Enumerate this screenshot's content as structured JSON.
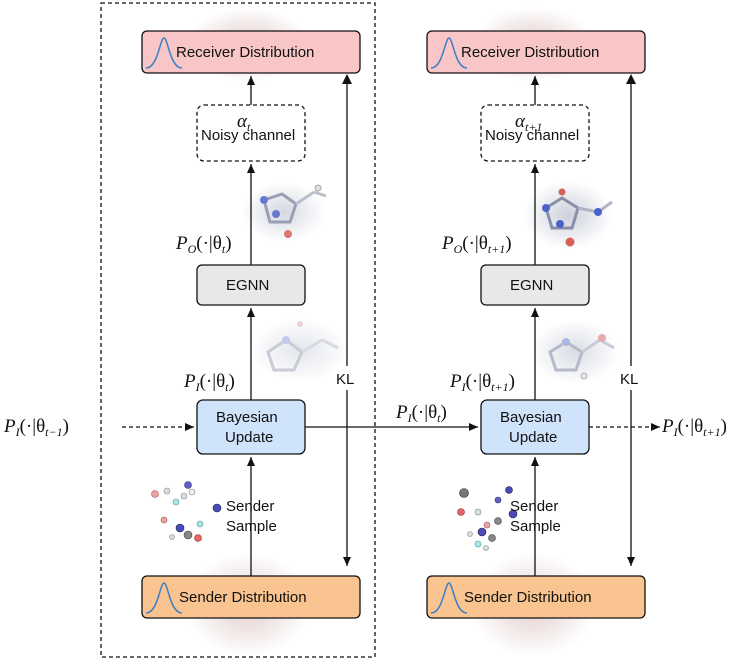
{
  "panels": [
    {
      "receiver_label": "Receiver Distribution",
      "alpha_symbol": "α",
      "alpha_sub": "t",
      "channel_label": "Noisy channel",
      "po_prefix": "P",
      "po_sub": "O",
      "po_arg": "(·|θ",
      "po_arg_sub": "t",
      "egnn_label": "EGNN",
      "pi_prefix": "P",
      "pi_sub": "I",
      "pi_arg": "(·|θ",
      "pi_arg_sub": "t",
      "bayes_line1": "Bayesian",
      "bayes_line2": "Update",
      "kl_label": "KL",
      "sender_sample_line1": "Sender",
      "sender_sample_line2": "Sample",
      "sender_label": "Sender Distribution"
    },
    {
      "receiver_label": "Receiver Distribution",
      "alpha_symbol": "α",
      "alpha_sub": "t+1",
      "channel_label": "Noisy channel",
      "po_prefix": "P",
      "po_sub": "O",
      "po_arg": "(·|θ",
      "po_arg_sub": "t+1",
      "egnn_label": "EGNN",
      "pi_prefix": "P",
      "pi_sub": "I",
      "pi_arg": "(·|θ",
      "pi_arg_sub": "t+1",
      "bayes_line1": "Bayesian",
      "bayes_line2": "Update",
      "kl_label": "KL",
      "sender_sample_line1": "Sender",
      "sender_sample_line2": "Sample",
      "sender_label": "Sender Distribution"
    }
  ],
  "flow": {
    "input_prefix": "P",
    "input_sub": "I",
    "input_arg": "(·|θ",
    "input_arg_sub": "t−1",
    "input_close": ")",
    "middle_prefix": "P",
    "middle_sub": "I",
    "middle_arg": "(·|θ",
    "middle_arg_sub": "t",
    "middle_close": ")",
    "output_prefix": "P",
    "output_sub": "I",
    "output_arg": "(·|θ",
    "output_arg_sub": "t+1",
    "output_close": ")"
  },
  "colors": {
    "receiver_fill": "#f8c6c6",
    "sender_fill": "#f9c48f",
    "bayes_fill": "#cfe3fb",
    "egnn_fill": "#e8e8e8",
    "gaussian_curve": "#3a7fc8"
  }
}
